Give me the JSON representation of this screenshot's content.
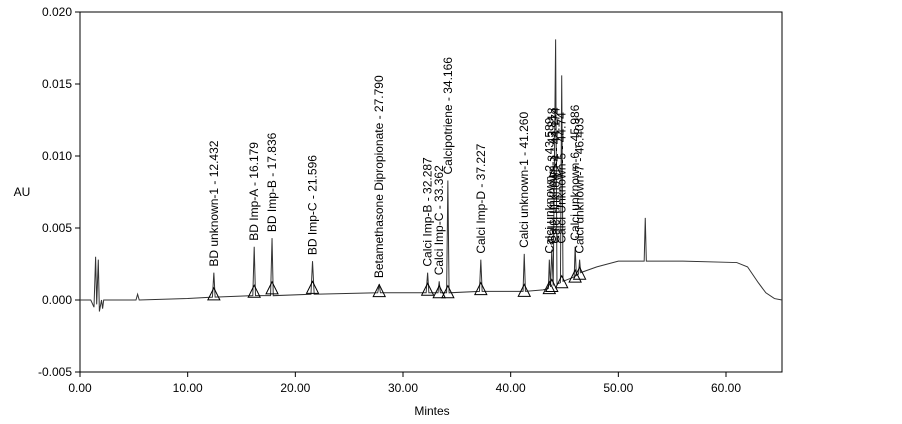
{
  "chart_data": {
    "type": "line",
    "x_label": "Mintes",
    "y_label": "AU",
    "xlim": [
      0,
      65.2
    ],
    "ylim": [
      -0.005,
      0.02
    ],
    "xticks": [
      {
        "value": 0,
        "label": "0.00"
      },
      {
        "value": 10,
        "label": "10.00"
      },
      {
        "value": 20,
        "label": "20.00"
      },
      {
        "value": 30,
        "label": "30.00"
      },
      {
        "value": 40,
        "label": "40.00"
      },
      {
        "value": 50,
        "label": "50.00"
      },
      {
        "value": 60,
        "label": "60.00"
      }
    ],
    "yticks": [
      -0.005,
      {
        "value": 0,
        "label": "0.000"
      },
      0.005,
      {
        "value": 0.01,
        "label": "0.010"
      },
      0.015,
      {
        "value": 0.02,
        "label": "0.020"
      }
    ],
    "series": [
      {
        "name": "AU",
        "color": "#333333",
        "x": [
          0,
          1.0,
          1.3,
          1.45,
          1.55,
          1.7,
          1.8,
          2.0,
          2.1,
          2.2,
          5.2,
          5.35,
          5.5,
          10,
          12.3,
          12.432,
          12.55,
          16.05,
          16.179,
          16.3,
          17.7,
          17.836,
          17.95,
          21.45,
          21.596,
          21.75,
          27.65,
          27.79,
          27.9,
          32.15,
          32.287,
          32.4,
          33.25,
          33.362,
          33.47,
          34.05,
          34.166,
          34.28,
          37.1,
          37.227,
          37.35,
          41.15,
          41.26,
          41.37,
          43.0,
          43.5,
          43.589,
          43.7,
          43.818,
          43.95,
          44.174,
          44.3,
          44.62,
          44.74,
          44.86,
          45.9,
          45.986,
          46.1,
          46.3,
          46.403,
          46.5,
          48,
          50,
          52.4,
          52.5,
          52.6,
          56,
          61,
          62,
          63,
          63.7,
          64.5,
          65.2
        ],
        "values": [
          0,
          0,
          -0.0005,
          0.003,
          -0.0003,
          0.0028,
          -0.0008,
          0,
          -0.0006,
          0,
          0,
          0.0004,
          0,
          0.0001,
          0.0002,
          0.0019,
          0.0002,
          0.0003,
          0.0037,
          0.0003,
          0.0003,
          0.0043,
          0.0003,
          0.0004,
          0.0027,
          0.0004,
          0.0005,
          0.0011,
          0.0005,
          0.0005,
          0.0019,
          0.0005,
          0.0005,
          0.0013,
          0.0005,
          0.0005,
          0.0083,
          0.0005,
          0.0006,
          0.0028,
          0.0006,
          0.0006,
          0.0032,
          0.0006,
          0.0007,
          0.0008,
          0.0028,
          0.0009,
          0.0035,
          0.001,
          0.0181,
          0.0011,
          0.0012,
          0.0156,
          0.0013,
          0.0016,
          0.0037,
          0.0017,
          0.0018,
          0.0028,
          0.0019,
          0.0023,
          0.0027,
          0.0027,
          0.0057,
          0.0027,
          0.0027,
          0.0026,
          0.0023,
          0.0012,
          0.0005,
          0.0001,
          0
        ]
      }
    ],
    "peaks": [
      {
        "label": "BD unknown-1 - 12.432",
        "x": 12.432
      },
      {
        "label": "BD Imp-A - 16.179",
        "x": 16.179
      },
      {
        "label": "BD Imp-B - 17.836",
        "x": 17.836
      },
      {
        "label": "BD Imp-C - 21.596",
        "x": 21.596
      },
      {
        "label": "Betamethasone Dipropionate - 27.790",
        "x": 27.79
      },
      {
        "label": "Calci Imp-B - 32.287",
        "x": 32.287
      },
      {
        "label": "Calci Imp-C - 33.362",
        "x": 33.362
      },
      {
        "label": "Calcipotriene - 34.166",
        "x": 34.166
      },
      {
        "label": "Calci Imp-D - 37.227",
        "x": 37.227
      },
      {
        "label": "Calci unknown-1 - 41.260",
        "x": 41.26
      },
      {
        "label": "Calci unknown-2 - 43.589",
        "x": 43.589
      },
      {
        "label": "Calci unknown-3 - 43.818",
        "x": 43.818
      },
      {
        "label": "Calci unknown-4 - 44.174",
        "x": 44.174
      },
      {
        "label": "Calci Unknown-5 - 44.74",
        "x": 44.74
      },
      {
        "label": "Calci unknown-6 - 45.986",
        "x": 45.986
      },
      {
        "label": "Calci unknown-7 - 46.403",
        "x": 46.403
      }
    ]
  }
}
